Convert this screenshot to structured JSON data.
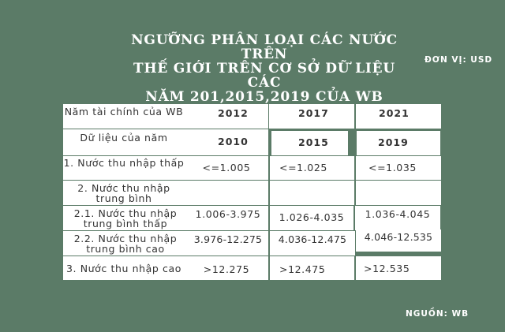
{
  "title_lines": [
    "NGƯỠNG PHÂN LOẠI CÁC NƯỚC TRÊN",
    "THẾ GIỚI TRÊN CƠ SỞ DỮ LIỆU CÁC",
    "NĂM 201,2015,2019 CỦA WB"
  ],
  "unit_label": "ĐƠN VỊ: USD",
  "source_label": "NGUỒN: WB",
  "table": {
    "header_row1": {
      "label": "Năm tài chính của WB",
      "years": [
        "2012",
        "2017",
        "2021"
      ]
    },
    "header_row2": {
      "label": "Dữ liệu của năm",
      "years": [
        "2010",
        "2015",
        "2019"
      ]
    },
    "rows": [
      {
        "label": "1.     Nước thu nhập thấp",
        "values": [
          "<=1.005",
          "<=1.025",
          "<=1.035"
        ]
      },
      {
        "label": "2. Nước thu nhập trung bình",
        "values": [
          "",
          "",
          ""
        ]
      },
      {
        "label": "2.1. Nước thu nhập trung bình thấp",
        "values": [
          "1.006-3.975",
          "1.026-4.035",
          "1.036-4.045"
        ]
      },
      {
        "label": "2.2. Nước thu nhập trung bình cao",
        "values": [
          "3.976-12.275",
          "4.036-12.475",
          "4.046-12.535"
        ]
      },
      {
        "label": "3. Nước thu nhập cao",
        "values": [
          ">12.275",
          ">12.475",
          ">12.535"
        ]
      }
    ]
  }
}
